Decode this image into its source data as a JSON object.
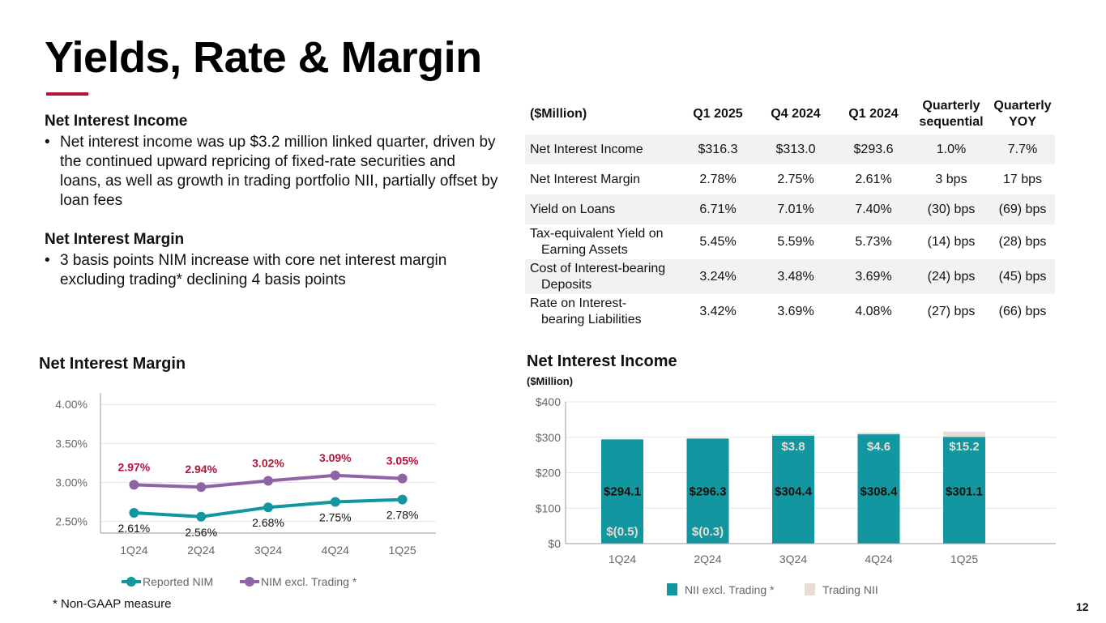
{
  "page": {
    "title": "Yields, Rate & Margin",
    "accent_color": "#b5123a",
    "page_number": "12",
    "footnote": "*   Non-GAAP measure"
  },
  "commentary": [
    {
      "heading": "Net Interest Income",
      "bullet": "Net interest income was up $3.2 million linked quarter, driven by the continued upward repricing of fixed-rate securities and loans, as well as growth in trading portfolio NII, partially offset by loan fees"
    },
    {
      "heading": "Net Interest Margin",
      "bullet": "3 basis points NIM increase with core net interest margin excluding trading* declining 4 basis points"
    }
  ],
  "table": {
    "headers": [
      "($Million)",
      "Q1 2025",
      "Q4 2024",
      "Q1 2024",
      "Quarterly sequential",
      "Quarterly YOY"
    ],
    "rows": [
      {
        "label": [
          "Net Interest Income"
        ],
        "values": [
          "$316.3",
          "$313.0",
          "$293.6",
          "1.0%",
          "7.7%"
        ]
      },
      {
        "label": [
          "Net Interest Margin"
        ],
        "values": [
          "2.78%",
          "2.75%",
          "2.61%",
          "3 bps",
          "17 bps"
        ]
      },
      {
        "label": [
          "Yield on Loans"
        ],
        "values": [
          "6.71%",
          "7.01%",
          "7.40%",
          "(30) bps",
          "(69) bps"
        ]
      },
      {
        "label": [
          "Tax-equivalent Yield on",
          "Earning Assets"
        ],
        "values": [
          "5.45%",
          "5.59%",
          "5.73%",
          "(14) bps",
          "(28) bps"
        ]
      },
      {
        "label": [
          "Cost of Interest-bearing",
          "Deposits"
        ],
        "values": [
          "3.24%",
          "3.48%",
          "3.69%",
          "(24) bps",
          "(45) bps"
        ]
      },
      {
        "label": [
          "Rate on Interest-",
          "bearing Liabilities"
        ],
        "values": [
          "3.42%",
          "3.69%",
          "4.08%",
          "(27) bps",
          "(66) bps"
        ]
      }
    ]
  },
  "chart_data": [
    {
      "type": "line",
      "title": "Net Interest Margin",
      "categories": [
        "1Q24",
        "2Q24",
        "3Q24",
        "4Q24",
        "1Q25"
      ],
      "yticks": [
        "2.50%",
        "3.00%",
        "3.50%",
        "4.00%"
      ],
      "ylim": [
        2.35,
        4.2
      ],
      "grid": true,
      "legend_position": "bottom",
      "series": [
        {
          "name": "Reported NIM",
          "color": "#12969f",
          "label_color": "#111111",
          "label_position": "below",
          "values": [
            2.61,
            2.56,
            2.68,
            2.75,
            2.78
          ],
          "labels": [
            "2.61%",
            "2.56%",
            "2.68%",
            "2.75%",
            "2.78%"
          ]
        },
        {
          "name": "NIM excl. Trading *",
          "color": "#8e64a5",
          "label_color": "#b5123a",
          "label_position": "above",
          "values": [
            2.97,
            2.94,
            3.02,
            3.09,
            3.05
          ],
          "labels": [
            "2.97%",
            "2.94%",
            "3.02%",
            "3.09%",
            "3.05%"
          ]
        }
      ]
    },
    {
      "type": "bar",
      "stacked": true,
      "title": "Net Interest Income",
      "subtitle": "($Million)",
      "categories": [
        "1Q24",
        "2Q24",
        "3Q24",
        "4Q24",
        "1Q25"
      ],
      "yticks": [
        "$0",
        "$100",
        "$200",
        "$300",
        "$400"
      ],
      "ylim": [
        0,
        400
      ],
      "grid": true,
      "legend_position": "bottom",
      "series": [
        {
          "name": "NII excl. Trading *",
          "color": "#12969f",
          "values": [
            294.1,
            296.3,
            304.4,
            308.4,
            301.1
          ],
          "labels": [
            "$294.1",
            "$296.3",
            "$304.4",
            "$308.4",
            "$301.1"
          ]
        },
        {
          "name": "Trading NII",
          "color": "#e8ddd6",
          "values": [
            -0.5,
            -0.3,
            3.8,
            4.6,
            15.2
          ],
          "labels": [
            "$(0.5)",
            "$(0.3)",
            "$3.8",
            "$4.6",
            "$15.2"
          ]
        }
      ]
    }
  ]
}
